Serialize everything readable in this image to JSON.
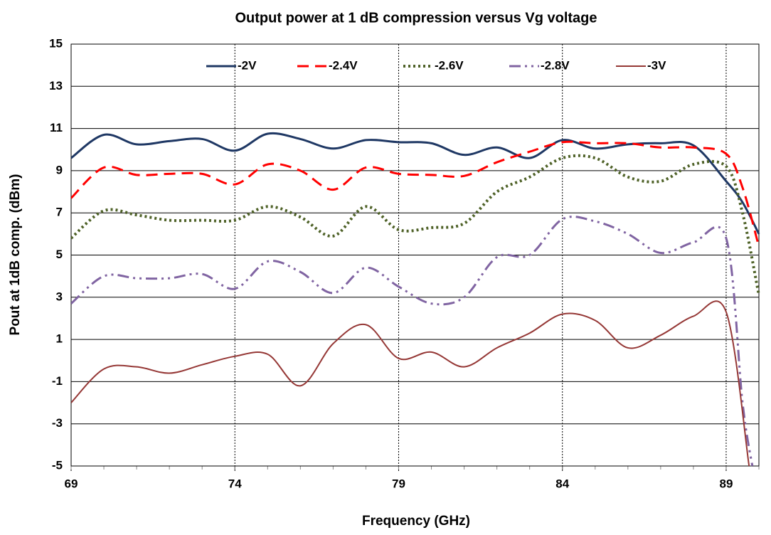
{
  "chart_data": {
    "type": "line",
    "title": "Output power at 1 dB compression versus Vg voltage",
    "xlabel": "Frequency (GHz)",
    "ylabel": "Pout at 1dB comp. (dBm)",
    "xlim": [
      69,
      90
    ],
    "xticks": [
      69,
      74,
      79,
      84,
      89
    ],
    "ylim": [
      -5,
      15
    ],
    "yticks": [
      -5,
      -3,
      -1,
      1,
      3,
      5,
      7,
      9,
      11,
      13,
      15
    ],
    "grid": true,
    "legend": "top",
    "series": [
      {
        "name": "-2V",
        "color": "#1f3864",
        "style": "solid",
        "x": [
          69,
          70,
          71,
          72,
          73,
          74,
          75,
          76,
          77,
          78,
          79,
          80,
          81,
          82,
          83,
          84,
          85,
          86,
          87,
          88,
          89,
          89.5,
          90
        ],
        "values": [
          9.6,
          10.7,
          10.25,
          10.4,
          10.5,
          9.95,
          10.75,
          10.5,
          10.05,
          10.45,
          10.35,
          10.3,
          9.75,
          10.1,
          9.6,
          10.45,
          10.05,
          10.25,
          10.3,
          10.2,
          8.5,
          7.5,
          6.0
        ]
      },
      {
        "name": "-2.4V",
        "color": "#ff0000",
        "style": "dash",
        "x": [
          69,
          70,
          71,
          72,
          73,
          74,
          75,
          76,
          77,
          78,
          79,
          80,
          81,
          82,
          83,
          84,
          85,
          86,
          87,
          88,
          89,
          89.5,
          90
        ],
        "values": [
          7.7,
          9.15,
          8.8,
          8.85,
          8.85,
          8.35,
          9.3,
          9.0,
          8.1,
          9.15,
          8.85,
          8.8,
          8.75,
          9.4,
          9.9,
          10.35,
          10.3,
          10.3,
          10.1,
          10.1,
          9.8,
          8.2,
          5.4
        ]
      },
      {
        "name": "-2.6V",
        "color": "#4f6228",
        "style": "dot",
        "x": [
          69,
          70,
          71,
          72,
          73,
          74,
          75,
          76,
          77,
          78,
          79,
          80,
          81,
          82,
          83,
          84,
          85,
          86,
          87,
          88,
          89,
          89.5,
          90
        ],
        "values": [
          5.8,
          7.1,
          6.9,
          6.65,
          6.65,
          6.65,
          7.3,
          6.8,
          5.9,
          7.3,
          6.2,
          6.3,
          6.5,
          8.0,
          8.7,
          9.6,
          9.6,
          8.7,
          8.5,
          9.3,
          9.2,
          7.0,
          3.1
        ]
      },
      {
        "name": "-2.8V",
        "color": "#8064a2",
        "style": "dashdotdot",
        "x": [
          69,
          70,
          71,
          72,
          73,
          74,
          75,
          76,
          77,
          78,
          79,
          80,
          81,
          82,
          83,
          84,
          85,
          86,
          87,
          88,
          89,
          89.5,
          89.8
        ],
        "values": [
          2.7,
          4.0,
          3.9,
          3.9,
          4.1,
          3.4,
          4.7,
          4.2,
          3.2,
          4.4,
          3.5,
          2.7,
          3.0,
          4.9,
          5.0,
          6.7,
          6.6,
          6.0,
          5.1,
          5.6,
          5.8,
          -2,
          -5
        ]
      },
      {
        "name": "-3V",
        "color": "#953735",
        "style": "solid-thin",
        "x": [
          69,
          70,
          71,
          72,
          73,
          74,
          75,
          76,
          77,
          78,
          79,
          80,
          81,
          82,
          83,
          84,
          85,
          86,
          87,
          88,
          89,
          89.7
        ],
        "values": [
          -2.0,
          -0.4,
          -0.3,
          -0.6,
          -0.2,
          0.2,
          0.3,
          -1.2,
          0.8,
          1.7,
          0.1,
          0.4,
          -0.3,
          0.6,
          1.3,
          2.2,
          1.9,
          0.6,
          1.2,
          2.1,
          2.3,
          -5
        ]
      }
    ]
  }
}
